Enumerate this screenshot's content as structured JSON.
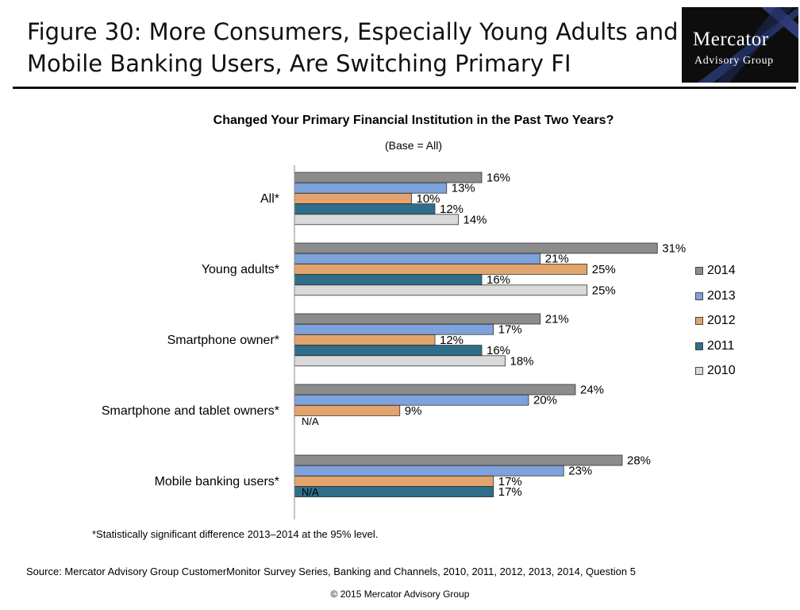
{
  "figure": {
    "title_line1": "Figure 30: More Consumers, Especially Young Adults and",
    "title_line2": "Mobile Banking Users, Are Switching Primary FI"
  },
  "logo": {
    "line1": "Mercator",
    "line2": "Advisory Group"
  },
  "chart_data": {
    "type": "bar",
    "orientation": "horizontal",
    "title": "Changed Your Primary Financial Institution in the Past Two Years?",
    "subtitle": "(Base = All)",
    "categories": [
      "All*",
      "Young adults*",
      "Smartphone owner*",
      "Smartphone and tablet owners*",
      "Mobile banking users*"
    ],
    "series": [
      {
        "name": "2014",
        "color": "#8c8c8c",
        "values": [
          16,
          31,
          21,
          24,
          28
        ],
        "labels": [
          "16%",
          "31%",
          "21%",
          "24%",
          "28%"
        ]
      },
      {
        "name": "2013",
        "color": "#7da2dc",
        "values": [
          13,
          21,
          17,
          20,
          23
        ],
        "labels": [
          "13%",
          "21%",
          "17%",
          "20%",
          "23%"
        ]
      },
      {
        "name": "2012",
        "color": "#e2a46c",
        "values": [
          10,
          25,
          12,
          9,
          17
        ],
        "labels": [
          "10%",
          "25%",
          "12%",
          "9%",
          "17%"
        ]
      },
      {
        "name": "2011",
        "color": "#2e6e8a",
        "values": [
          12,
          16,
          16,
          null,
          17
        ],
        "labels": [
          "12%",
          "16%",
          "16%",
          null,
          "17%"
        ]
      },
      {
        "name": "2010",
        "color": "#d9d9d9",
        "values": [
          14,
          25,
          18,
          null,
          null
        ],
        "labels": [
          "14%",
          "25%",
          "18%",
          null,
          null
        ]
      }
    ],
    "na_labels": [
      "",
      "",
      "",
      "N/A",
      "N/A"
    ],
    "value_unit": "%",
    "legend_position": "right",
    "grid": false
  },
  "footnote": "*Statistically significant difference 2013–2014 at the 95% level.",
  "source": "Source: Mercator Advisory Group CustomerMonitor Survey Series, Banking and Channels, 2010, 2011, 2012, 2013, 2014, Question 5",
  "copyright": "© 2015 Mercator Advisory Group"
}
